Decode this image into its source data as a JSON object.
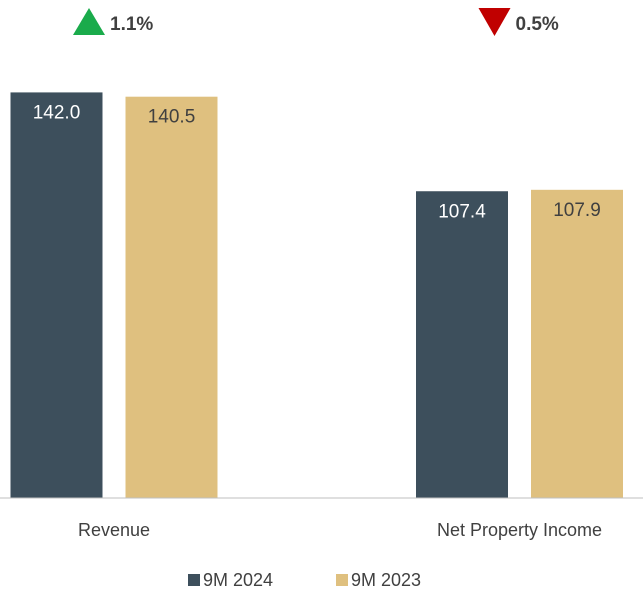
{
  "chart_data": {
    "type": "bar",
    "categories": [
      "Revenue",
      "Net Property Income"
    ],
    "series": [
      {
        "name": "9M 2024",
        "color": "#3d4f5c",
        "values": [
          142.0,
          107.4
        ],
        "value_labels": [
          "142.0",
          "107.4"
        ]
      },
      {
        "name": "9M 2023",
        "color": "#dfc07f",
        "values": [
          140.5,
          107.9
        ],
        "value_labels": [
          "140.5",
          "107.9"
        ]
      }
    ],
    "ylim": [
      0,
      160
    ],
    "annotations": [
      {
        "text": "1.1%",
        "direction": "up",
        "color": "#1aab4b"
      },
      {
        "text": "0.5%",
        "direction": "down",
        "color": "#c00000"
      }
    ],
    "legend": "bottom"
  }
}
